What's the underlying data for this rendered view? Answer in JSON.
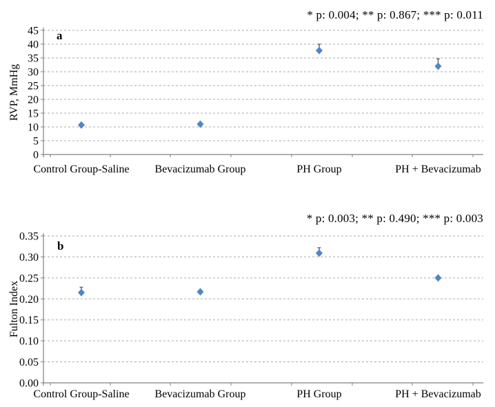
{
  "figure": {
    "background": "#ffffff",
    "marker_color": "#4f86c8",
    "error_bar_color": "#595959",
    "gridline_color": "#aaaaaa",
    "axis_color": "#808080",
    "text_color": "#000000"
  },
  "chart_data": [
    {
      "type": "scatter",
      "panel_label": "a",
      "ylabel": "RVP, MmHg",
      "xlabel": "",
      "annotation": "* p: 0.004; ** p: 0.867; *** p: 0.011",
      "categories": [
        "Control Group-Saline",
        "Bevacizumab Group",
        "PH Group",
        "PH + Bevacizumab"
      ],
      "values": [
        10.7,
        11.0,
        37.7,
        32.0
      ],
      "error_up": [
        0.5,
        0.3,
        2.3,
        2.7
      ],
      "ylim": [
        0,
        45
      ],
      "y_tick_labels": [
        "0",
        "5",
        "10",
        "15",
        "20",
        "25",
        "30",
        "35",
        "40",
        "45"
      ],
      "grid": true,
      "grid_style": "dashed",
      "legend": "none",
      "marker": "diamond"
    },
    {
      "type": "scatter",
      "panel_label": "b",
      "ylabel": "Fulton Index",
      "xlabel": "",
      "annotation": "* p: 0.003; ** p: 0.490; *** p: 0.003",
      "categories": [
        "Control Group-Saline",
        "Bevacizumab Group",
        "PH Group",
        "PH + Bevacizumab"
      ],
      "values": [
        0.215,
        0.217,
        0.309,
        0.25
      ],
      "error_up": [
        0.013,
        0.004,
        0.013,
        0.002
      ],
      "ylim": [
        0,
        0.35
      ],
      "y_tick_labels": [
        "0.00",
        "0.05",
        "0.10",
        "0.15",
        "0.20",
        "0.25",
        "0.30",
        "0.35"
      ],
      "grid": true,
      "grid_style": "dashed",
      "legend": "none",
      "marker": "diamond"
    }
  ]
}
